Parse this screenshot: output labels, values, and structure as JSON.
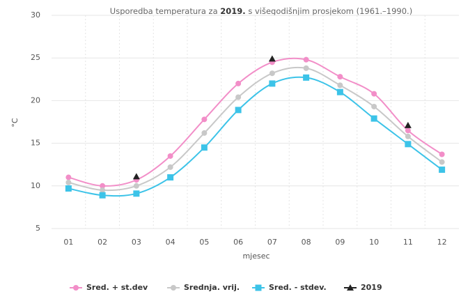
{
  "chart_data": {
    "type": "line",
    "title_parts": [
      "Usporedba temperatura za ",
      "2019.",
      " s višegodišnjim prosjekom (1961.–1990.)"
    ],
    "x_label": "mjesec",
    "y_label": "°C",
    "categories": [
      "01",
      "02",
      "03",
      "04",
      "05",
      "06",
      "07",
      "08",
      "09",
      "10",
      "11",
      "12"
    ],
    "ylim": [
      5,
      30
    ],
    "yticks": [
      5,
      10,
      15,
      20,
      25,
      30
    ],
    "grid": true,
    "series": [
      {
        "name": "Sred. + st.dev",
        "color": "#f28ec8",
        "marker": "circle",
        "values": [
          11,
          10,
          10.7,
          13.5,
          17.8,
          22,
          24.5,
          24.8,
          22.8,
          20.8,
          16.5,
          13.7
        ]
      },
      {
        "name": "Srednja. vrij.",
        "color": "#c8c8c8",
        "marker": "circle",
        "values": [
          10.4,
          9.5,
          10,
          12.2,
          16.2,
          20.4,
          23.2,
          23.8,
          21.8,
          19.3,
          15.8,
          12.8
        ]
      },
      {
        "name": "Sred. - stdev.",
        "color": "#3cc3e8",
        "marker": "square",
        "values": [
          9.7,
          8.9,
          9.1,
          11,
          14.5,
          18.9,
          22,
          22.7,
          21,
          17.9,
          14.9,
          11.9
        ]
      },
      {
        "name": "2019",
        "color": "#222222",
        "marker": "triangle",
        "line": false,
        "values": [
          null,
          null,
          11.1,
          null,
          null,
          null,
          24.9,
          null,
          null,
          null,
          17.1,
          null
        ]
      }
    ]
  }
}
